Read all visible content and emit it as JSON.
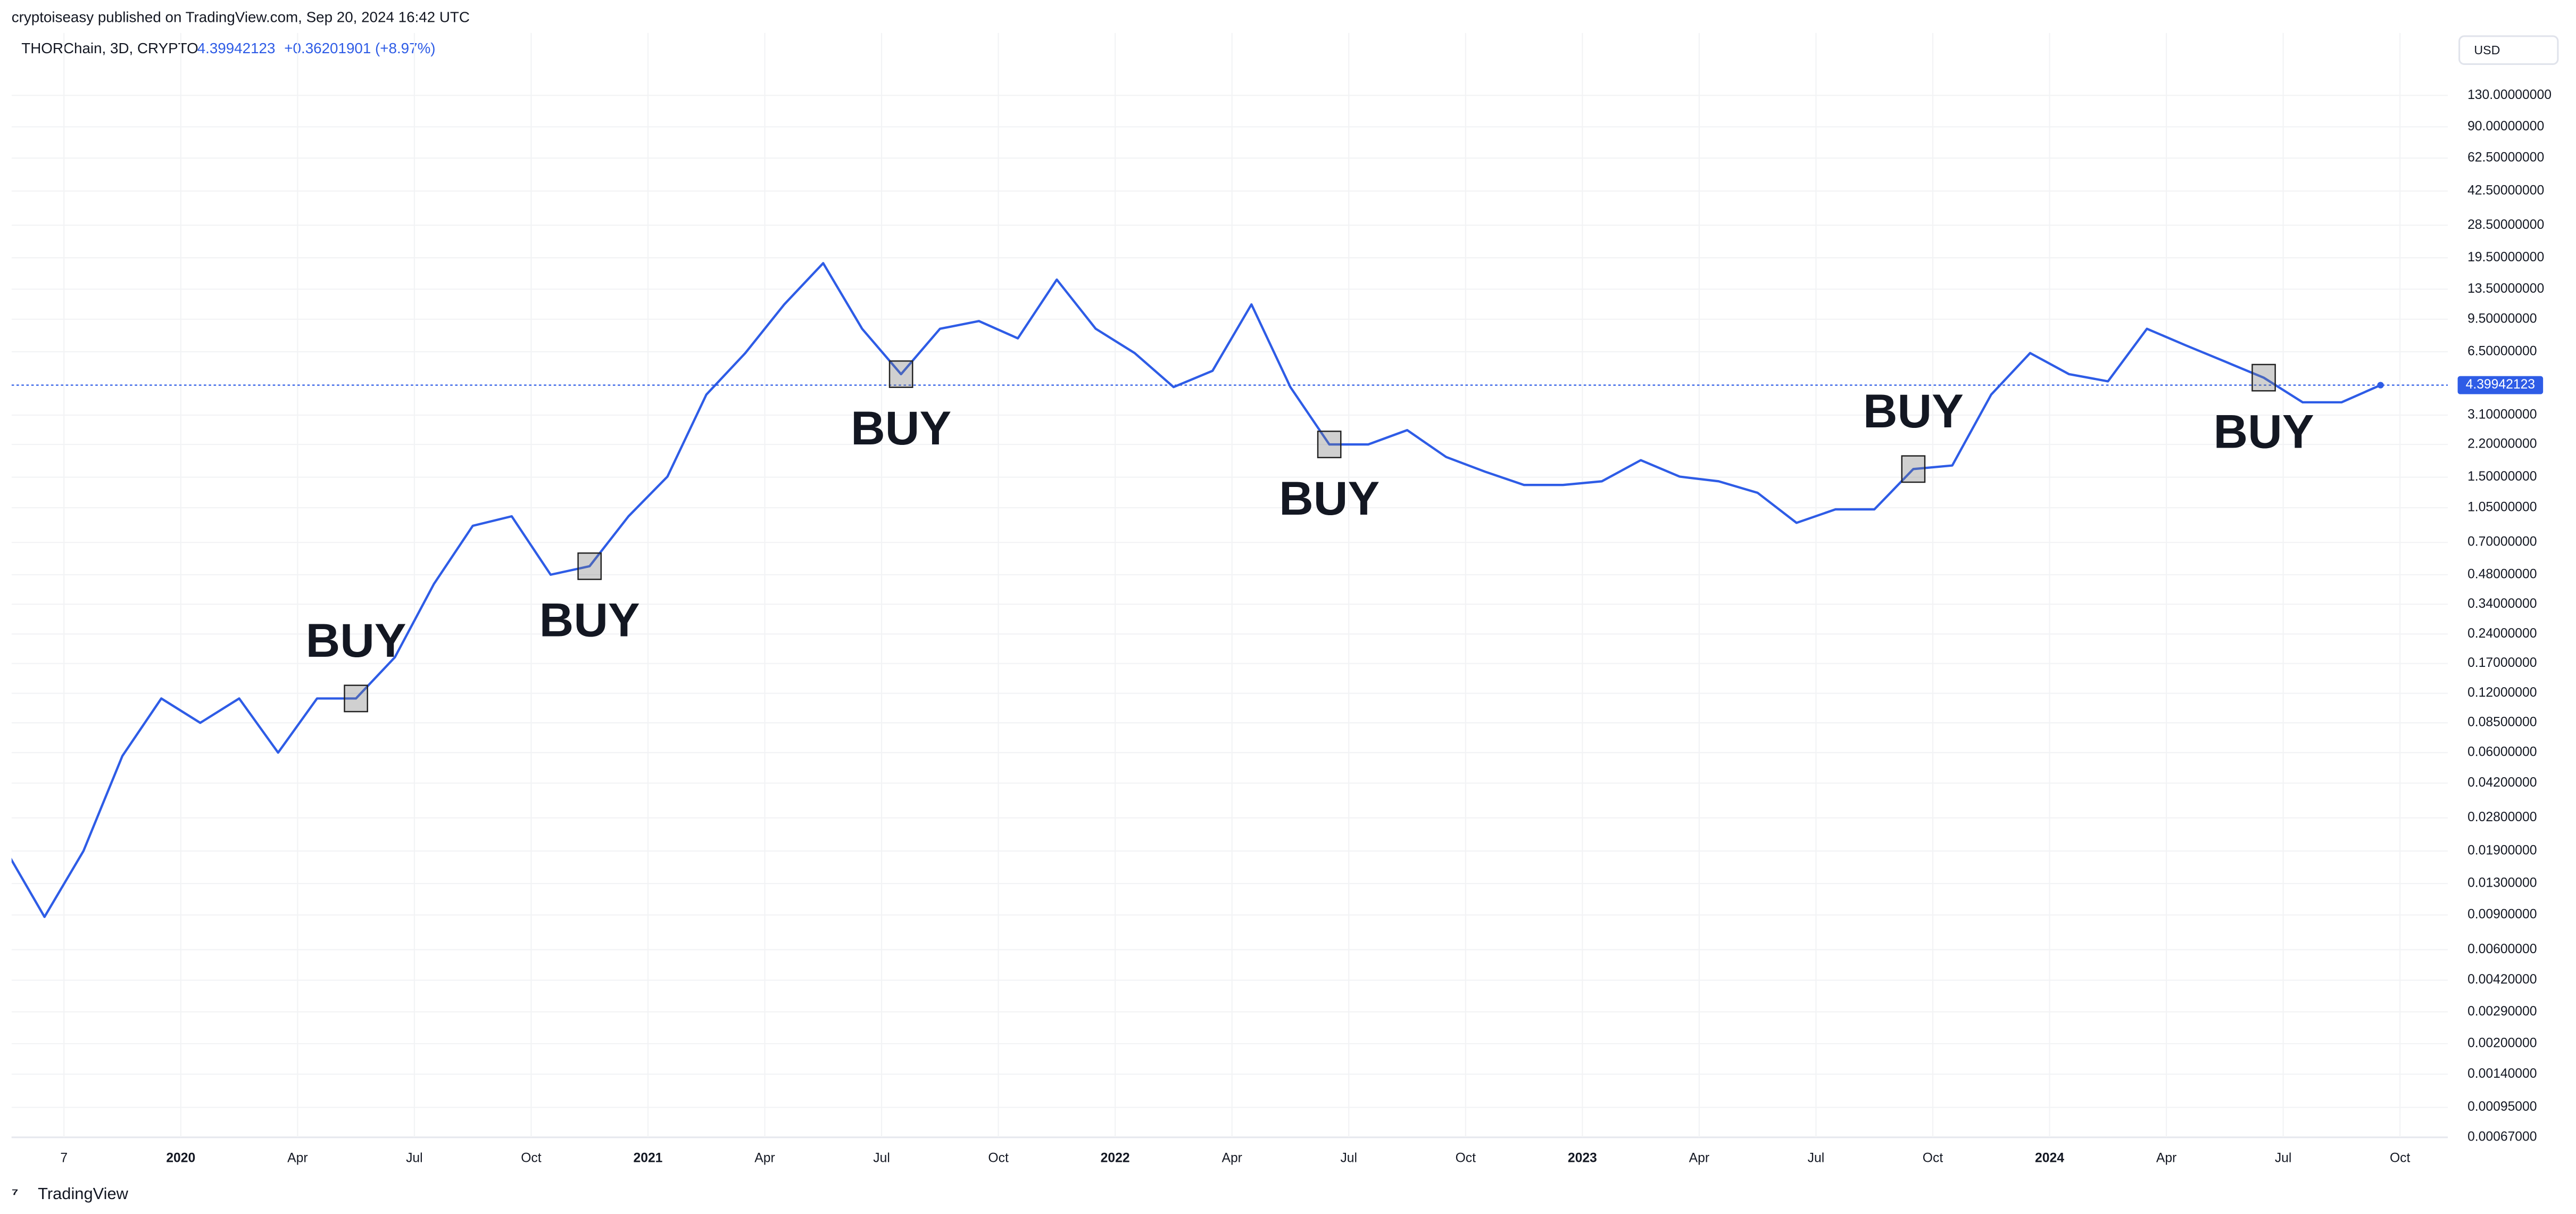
{
  "header": {
    "publisher": "cryptoiseasy published on TradingView.com, Sep 20, 2024 16:42 UTC",
    "change": "+0.36201901 (+8.97%)",
    "currency": "USD",
    "footer": "TradingView"
  },
  "chart_data": {
    "type": "line",
    "log_scale": true,
    "grid": true,
    "series": [
      {
        "name": "THORChain, 3D, CRYPTO",
        "color": "#2e5ce6",
        "values": [
          0.0193,
          0.0088,
          0.019,
          0.0577,
          0.113,
          0.085,
          0.113,
          0.06,
          0.113,
          0.113,
          0.183,
          0.43,
          0.85,
          0.95,
          0.48,
          0.53,
          0.95,
          1.51,
          3.94,
          6.4,
          11.3,
          18.3,
          8.5,
          5.0,
          8.5,
          9.3,
          7.6,
          15.1,
          8.5,
          6.4,
          4.3,
          5.2,
          11.3,
          4.3,
          2.2,
          2.2,
          2.6,
          1.9,
          1.6,
          1.37,
          1.37,
          1.43,
          1.83,
          1.51,
          1.43,
          1.25,
          0.88,
          1.03,
          1.03,
          1.65,
          1.72,
          3.94,
          6.4,
          5.0,
          4.6,
          8.5,
          7.0,
          5.8,
          4.8,
          3.6,
          3.6,
          4.39942123
        ]
      }
    ],
    "x": [
      "2019-08",
      "2019-09",
      "2019-10",
      "2019-11",
      "2019-12",
      "2020-01",
      "2020-02",
      "2020-03",
      "2020-04",
      "2020-05",
      "2020-06",
      "2020-07",
      "2020-08",
      "2020-09",
      "2020-10",
      "2020-11",
      "2020-12",
      "2021-01",
      "2021-02",
      "2021-03",
      "2021-04",
      "2021-05",
      "2021-06",
      "2021-07",
      "2021-08",
      "2021-09",
      "2021-10",
      "2021-11",
      "2021-12",
      "2022-01",
      "2022-02",
      "2022-03",
      "2022-04",
      "2022-05",
      "2022-06",
      "2022-07",
      "2022-08",
      "2022-09",
      "2022-10",
      "2022-11",
      "2022-12",
      "2023-01",
      "2023-02",
      "2023-03",
      "2023-04",
      "2023-05",
      "2023-06",
      "2023-07",
      "2023-08",
      "2023-09",
      "2023-10",
      "2023-11",
      "2023-12",
      "2024-01",
      "2024-02",
      "2024-03",
      "2024-04",
      "2024-05",
      "2024-06",
      "2024-07",
      "2024-08",
      "2024-09"
    ],
    "last_value": 4.39942123,
    "xlim": [
      "2019-08",
      "2024-11"
    ],
    "xticks": [
      {
        "value": "2019-10",
        "label": "7"
      },
      {
        "value": "2020-01",
        "label": "2020"
      },
      {
        "value": "2020-04",
        "label": "Apr"
      },
      {
        "value": "2020-07",
        "label": "Jul"
      },
      {
        "value": "2020-10",
        "label": "Oct"
      },
      {
        "value": "2021-01",
        "label": "2021"
      },
      {
        "value": "2021-04",
        "label": "Apr"
      },
      {
        "value": "2021-07",
        "label": "Jul"
      },
      {
        "value": "2021-10",
        "label": "Oct"
      },
      {
        "value": "2022-01",
        "label": "2022"
      },
      {
        "value": "2022-04",
        "label": "Apr"
      },
      {
        "value": "2022-07",
        "label": "Jul"
      },
      {
        "value": "2022-10",
        "label": "Oct"
      },
      {
        "value": "2023-01",
        "label": "2023"
      },
      {
        "value": "2023-04",
        "label": "Apr"
      },
      {
        "value": "2023-07",
        "label": "Jul"
      },
      {
        "value": "2023-10",
        "label": "Oct"
      },
      {
        "value": "2024-01",
        "label": "2024"
      },
      {
        "value": "2024-04",
        "label": "Apr"
      },
      {
        "value": "2024-07",
        "label": "Jul"
      },
      {
        "value": "2024-10",
        "label": "Oct"
      }
    ],
    "ylim": [
      0.00067,
      167
    ],
    "yticks": [
      {
        "value": 130,
        "label": "130.00000000"
      },
      {
        "value": 90,
        "label": "90.00000000"
      },
      {
        "value": 62.5,
        "label": "62.50000000"
      },
      {
        "value": 42.5,
        "label": "42.50000000"
      },
      {
        "value": 28.5,
        "label": "28.50000000"
      },
      {
        "value": 19.5,
        "label": "19.50000000"
      },
      {
        "value": 13.5,
        "label": "13.50000000"
      },
      {
        "value": 9.5,
        "label": "9.50000000"
      },
      {
        "value": 6.5,
        "label": "6.50000000"
      },
      {
        "value": 3.1,
        "label": "3.10000000"
      },
      {
        "value": 2.2,
        "label": "2.20000000"
      },
      {
        "value": 1.5,
        "label": "1.50000000"
      },
      {
        "value": 1.05,
        "label": "1.05000000"
      },
      {
        "value": 0.7,
        "label": "0.70000000"
      },
      {
        "value": 0.48,
        "label": "0.48000000"
      },
      {
        "value": 0.34,
        "label": "0.34000000"
      },
      {
        "value": 0.24,
        "label": "0.24000000"
      },
      {
        "value": 0.17,
        "label": "0.17000000"
      },
      {
        "value": 0.12,
        "label": "0.12000000"
      },
      {
        "value": 0.085,
        "label": "0.08500000"
      },
      {
        "value": 0.06,
        "label": "0.06000000"
      },
      {
        "value": 0.042,
        "label": "0.04200000"
      },
      {
        "value": 0.028,
        "label": "0.02800000"
      },
      {
        "value": 0.019,
        "label": "0.01900000"
      },
      {
        "value": 0.013,
        "label": "0.01300000"
      },
      {
        "value": 0.009,
        "label": "0.00900000"
      },
      {
        "value": 0.006,
        "label": "0.00600000"
      },
      {
        "value": 0.0042,
        "label": "0.00420000"
      },
      {
        "value": 0.0029,
        "label": "0.00290000"
      },
      {
        "value": 0.002,
        "label": "0.00200000"
      },
      {
        "value": 0.0014,
        "label": "0.00140000"
      },
      {
        "value": 0.00095,
        "label": "0.00095000"
      },
      {
        "value": 0.00067,
        "label": "0.00067000"
      }
    ],
    "annotations": [
      {
        "text": "BUY",
        "x": "2020-05",
        "position": "above"
      },
      {
        "text": "BUY",
        "x": "2020-11",
        "position": "below"
      },
      {
        "text": "BUY",
        "x": "2021-07",
        "position": "below"
      },
      {
        "text": "BUY",
        "x": "2022-06",
        "position": "below"
      },
      {
        "text": "BUY",
        "x": "2023-09",
        "position": "above"
      },
      {
        "text": "BUY",
        "x": "2024-06",
        "position": "below"
      }
    ]
  }
}
